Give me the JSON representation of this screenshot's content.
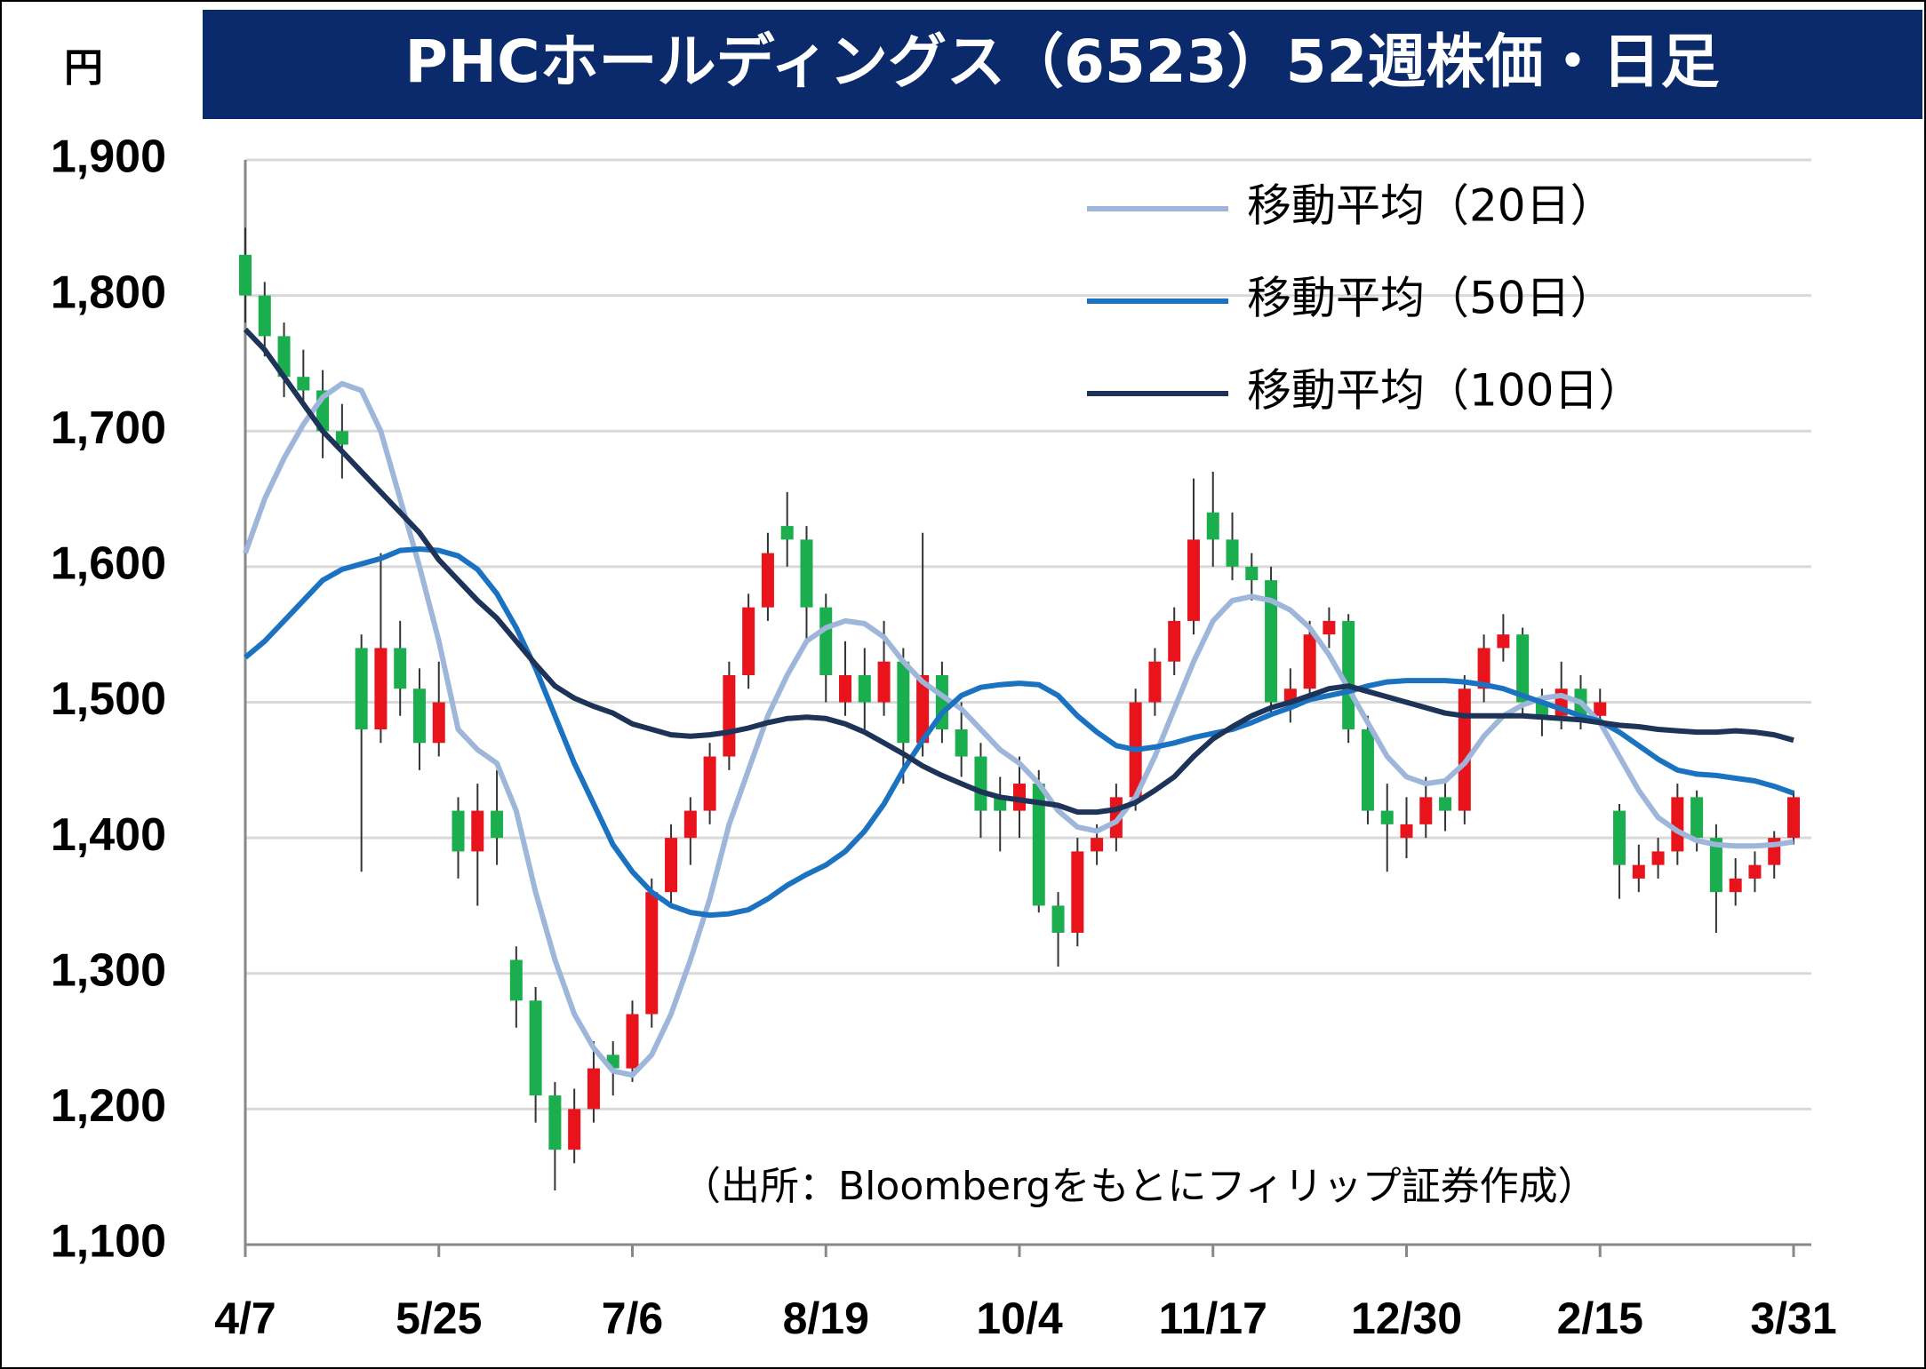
{
  "chart_data": {
    "type": "candlestick",
    "title": "PHCホールディングス（6523）52週株価・日足",
    "y_unit": "円",
    "source": "（出所：Bloombergをもとにフィリップ証券作成）",
    "ylim": [
      1100,
      1900
    ],
    "yticks": [
      {
        "value": 1100,
        "label": "1,100"
      },
      {
        "value": 1200,
        "label": "1,200"
      },
      {
        "value": 1300,
        "label": "1,300"
      },
      {
        "value": 1400,
        "label": "1,400"
      },
      {
        "value": 1500,
        "label": "1,500"
      },
      {
        "value": 1600,
        "label": "1,600"
      },
      {
        "value": 1700,
        "label": "1,700"
      },
      {
        "value": 1800,
        "label": "1,800"
      },
      {
        "value": 1900,
        "label": "1,900"
      }
    ],
    "grid": true,
    "legend": "upper right",
    "up_color": "#e8131b",
    "down_color": "#1aae4f",
    "categories": [
      "4/7",
      null,
      null,
      null,
      null,
      null,
      null,
      null,
      null,
      null,
      "5/25",
      null,
      null,
      null,
      null,
      null,
      null,
      null,
      null,
      null,
      "7/6",
      null,
      null,
      null,
      null,
      null,
      null,
      null,
      null,
      null,
      "8/19",
      null,
      null,
      null,
      null,
      null,
      null,
      null,
      null,
      null,
      "10/4",
      null,
      null,
      null,
      null,
      null,
      null,
      null,
      null,
      null,
      "11/17",
      null,
      null,
      null,
      null,
      null,
      null,
      null,
      null,
      null,
      "12/30",
      null,
      null,
      null,
      null,
      null,
      null,
      null,
      null,
      null,
      "2/15",
      null,
      null,
      null,
      null,
      null,
      null,
      null,
      null,
      null,
      "3/31"
    ],
    "ohlc": {
      "open": [
        1830,
        1800,
        1770,
        1740,
        1730,
        1700,
        1540,
        1480,
        1540,
        1510,
        1470,
        1420,
        1390,
        1420,
        1310,
        1280,
        1210,
        1170,
        1200,
        1240,
        1230,
        1270,
        1360,
        1400,
        1420,
        1460,
        1520,
        1570,
        1630,
        1620,
        1570,
        1500,
        1520,
        1500,
        1530,
        1470,
        1520,
        1480,
        1460,
        1430,
        1420,
        1440,
        1350,
        1330,
        1390,
        1400,
        1430,
        1500,
        1530,
        1560,
        1640,
        1620,
        1600,
        1590,
        1500,
        1510,
        1550,
        1560,
        1480,
        1420,
        1400,
        1410,
        1430,
        1420,
        1510,
        1540,
        1550,
        1500,
        1490,
        1510,
        1490,
        1420,
        1370,
        1380,
        1390,
        1430,
        1400,
        1360,
        1370,
        1380,
        1400
      ],
      "high": [
        1850,
        1810,
        1780,
        1760,
        1745,
        1720,
        1550,
        1610,
        1560,
        1525,
        1530,
        1430,
        1440,
        1450,
        1320,
        1290,
        1220,
        1215,
        1250,
        1250,
        1280,
        1370,
        1410,
        1430,
        1470,
        1530,
        1580,
        1625,
        1655,
        1630,
        1580,
        1545,
        1540,
        1560,
        1540,
        1625,
        1530,
        1500,
        1470,
        1445,
        1460,
        1450,
        1360,
        1400,
        1410,
        1440,
        1510,
        1540,
        1570,
        1665,
        1670,
        1640,
        1610,
        1600,
        1525,
        1560,
        1570,
        1565,
        1490,
        1440,
        1430,
        1445,
        1440,
        1520,
        1550,
        1565,
        1555,
        1510,
        1530,
        1520,
        1510,
        1425,
        1395,
        1400,
        1440,
        1435,
        1410,
        1385,
        1390,
        1405,
        1435
      ],
      "low": [
        1780,
        1755,
        1725,
        1720,
        1680,
        1665,
        1375,
        1470,
        1490,
        1450,
        1460,
        1370,
        1350,
        1380,
        1260,
        1190,
        1140,
        1160,
        1190,
        1210,
        1220,
        1260,
        1350,
        1380,
        1410,
        1450,
        1510,
        1560,
        1600,
        1545,
        1500,
        1490,
        1480,
        1490,
        1440,
        1460,
        1470,
        1445,
        1400,
        1390,
        1400,
        1345,
        1305,
        1320,
        1380,
        1390,
        1420,
        1490,
        1520,
        1550,
        1600,
        1590,
        1575,
        1490,
        1485,
        1500,
        1540,
        1470,
        1410,
        1375,
        1385,
        1400,
        1405,
        1410,
        1500,
        1530,
        1490,
        1475,
        1480,
        1480,
        1485,
        1355,
        1360,
        1370,
        1380,
        1390,
        1330,
        1350,
        1360,
        1370,
        1395
      ],
      "close": [
        1800,
        1770,
        1740,
        1730,
        1700,
        1690,
        1480,
        1540,
        1510,
        1470,
        1500,
        1390,
        1420,
        1400,
        1280,
        1210,
        1170,
        1200,
        1230,
        1230,
        1270,
        1360,
        1400,
        1420,
        1460,
        1520,
        1570,
        1610,
        1620,
        1570,
        1520,
        1520,
        1500,
        1530,
        1470,
        1520,
        1480,
        1460,
        1420,
        1420,
        1440,
        1350,
        1330,
        1390,
        1400,
        1430,
        1500,
        1530,
        1560,
        1620,
        1620,
        1600,
        1590,
        1500,
        1510,
        1550,
        1560,
        1480,
        1420,
        1410,
        1410,
        1430,
        1420,
        1510,
        1540,
        1550,
        1500,
        1490,
        1510,
        1490,
        1500,
        1380,
        1380,
        1390,
        1430,
        1400,
        1360,
        1370,
        1380,
        1400,
        1430
      ]
    },
    "series": [
      {
        "name": "移動平均（20日）",
        "color": "#9db6d9",
        "values": [
          1610,
          1650,
          1680,
          1705,
          1725,
          1735,
          1730,
          1700,
          1650,
          1600,
          1545,
          1480,
          1465,
          1455,
          1420,
          1360,
          1310,
          1270,
          1245,
          1228,
          1225,
          1240,
          1270,
          1310,
          1355,
          1410,
          1450,
          1490,
          1520,
          1545,
          1555,
          1560,
          1558,
          1548,
          1530,
          1515,
          1505,
          1495,
          1480,
          1465,
          1455,
          1440,
          1420,
          1408,
          1405,
          1412,
          1430,
          1460,
          1495,
          1530,
          1560,
          1575,
          1578,
          1575,
          1568,
          1555,
          1535,
          1510,
          1485,
          1460,
          1445,
          1440,
          1442,
          1455,
          1475,
          1490,
          1498,
          1503,
          1505,
          1500,
          1485,
          1460,
          1435,
          1415,
          1405,
          1398,
          1395,
          1394,
          1394,
          1395,
          1397
        ]
      },
      {
        "name": "移動平均（50日）",
        "color": "#1a72c0",
        "values": [
          1533,
          1545,
          1560,
          1575,
          1590,
          1598,
          1602,
          1606,
          1612,
          1613,
          1612,
          1608,
          1598,
          1580,
          1555,
          1525,
          1490,
          1455,
          1425,
          1395,
          1375,
          1360,
          1350,
          1345,
          1343,
          1344,
          1347,
          1355,
          1365,
          1373,
          1380,
          1390,
          1405,
          1425,
          1450,
          1472,
          1492,
          1505,
          1511,
          1513,
          1514,
          1513,
          1505,
          1490,
          1478,
          1468,
          1465,
          1467,
          1470,
          1474,
          1477,
          1480,
          1485,
          1491,
          1496,
          1502,
          1505,
          1508,
          1512,
          1515,
          1516,
          1516,
          1516,
          1515,
          1513,
          1510,
          1505,
          1500,
          1495,
          1490,
          1486,
          1478,
          1468,
          1458,
          1450,
          1447,
          1446,
          1444,
          1442,
          1438,
          1433
        ]
      },
      {
        "name": "移動平均（100日）",
        "color": "#1d3357",
        "values": [
          1775,
          1760,
          1740,
          1720,
          1700,
          1685,
          1670,
          1655,
          1640,
          1625,
          1605,
          1590,
          1575,
          1562,
          1545,
          1528,
          1512,
          1503,
          1497,
          1492,
          1484,
          1480,
          1476,
          1475,
          1476,
          1478,
          1481,
          1485,
          1488,
          1489,
          1488,
          1484,
          1478,
          1470,
          1462,
          1453,
          1446,
          1440,
          1434,
          1430,
          1428,
          1426,
          1424,
          1419,
          1419,
          1421,
          1426,
          1435,
          1445,
          1460,
          1473,
          1482,
          1490,
          1496,
          1500,
          1505,
          1510,
          1512,
          1508,
          1504,
          1500,
          1496,
          1492,
          1490,
          1490,
          1490,
          1490,
          1489,
          1488,
          1487,
          1485,
          1483,
          1482,
          1480,
          1479,
          1478,
          1478,
          1479,
          1478,
          1476,
          1472
        ]
      }
    ]
  }
}
